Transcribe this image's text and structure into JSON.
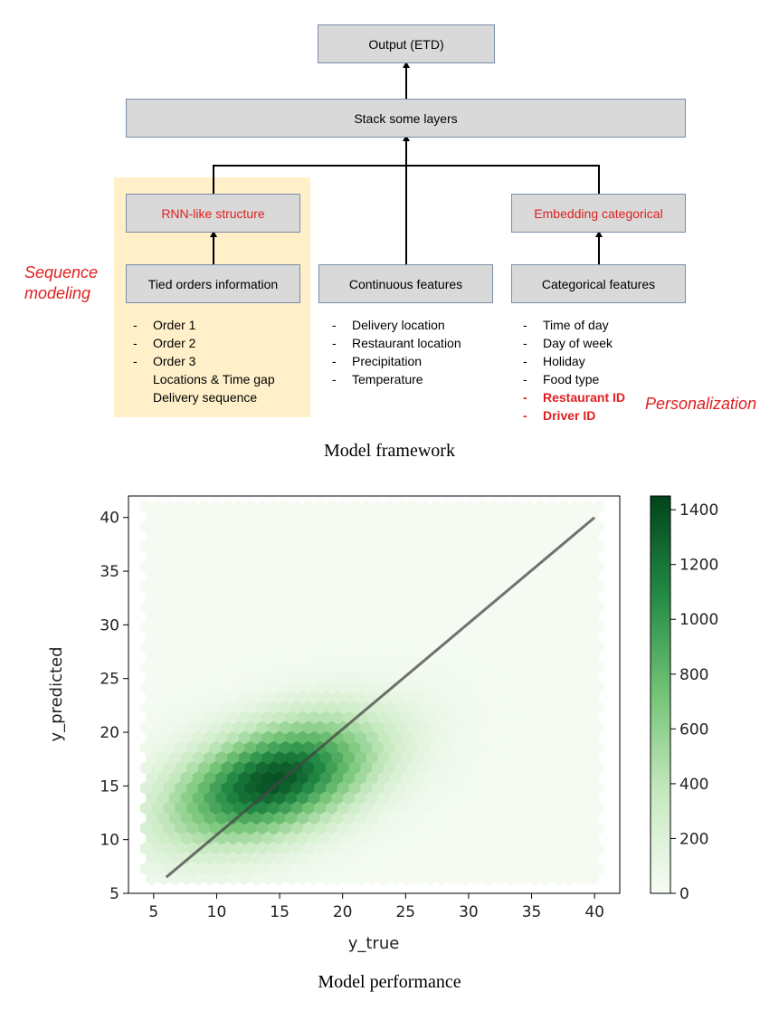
{
  "diagram": {
    "output_box": "Output (ETD)",
    "stack_box": "Stack some layers",
    "rnn_box": "RNN-like structure",
    "embedding_box": "Embedding categorical",
    "tied_box": "Tied orders information",
    "continuous_box": "Continuous features",
    "categorical_box": "Categorical features",
    "sequence_label_line1": "Sequence",
    "sequence_label_line2": "modeling",
    "personalization_label": "Personalization",
    "tied_items": [
      "Order 1",
      "Order 2",
      "Order 3"
    ],
    "tied_subitems": [
      "Locations & Time gap",
      "Delivery sequence"
    ],
    "continuous_items": [
      "Delivery location",
      "Restaurant location",
      "Precipitation",
      "Temperature"
    ],
    "categorical_items": [
      "Time of day",
      "Day of week",
      "Holiday",
      "Food type"
    ],
    "categorical_items_highlight": [
      "Restaurant ID",
      "Driver ID"
    ],
    "caption": "Model framework",
    "colors": {
      "accent_red": "#e02020",
      "box_fill": "#d9d9d9",
      "highlight": "#fff0c9"
    }
  },
  "chart_data": {
    "type": "heatmap",
    "subtype": "hexbin",
    "xlabel": "y_true",
    "ylabel": "y_predicted",
    "xlim": [
      3,
      42
    ],
    "ylim": [
      5,
      42
    ],
    "xticks": [
      5,
      10,
      15,
      20,
      25,
      30,
      35,
      40
    ],
    "yticks": [
      5,
      10,
      15,
      20,
      25,
      30,
      35,
      40
    ],
    "colorbar": {
      "min": 0,
      "max": 1450,
      "ticks": [
        0,
        200,
        400,
        600,
        800,
        1000,
        1200,
        1400
      ]
    },
    "colormap": "Greens",
    "reference_line": {
      "x": [
        6,
        40
      ],
      "y": [
        6.5,
        40
      ]
    },
    "density_peak": {
      "x": 14.5,
      "y": 15.5,
      "count": 1400
    },
    "density_spread": {
      "sx": 5,
      "sy": 3.5,
      "correlation": 0.45
    },
    "caption": "Model performance"
  }
}
